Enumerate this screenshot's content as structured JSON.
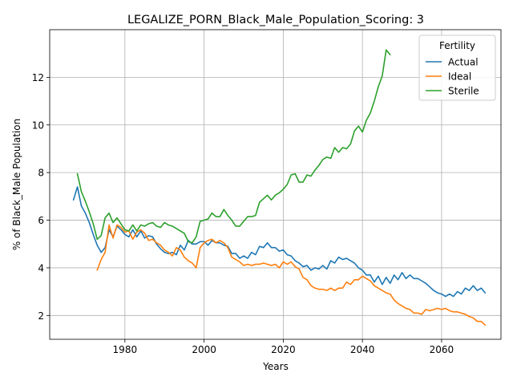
{
  "chart_data": {
    "type": "line",
    "title": "LEGALIZE_PORN_Black_Male_Population_Scoring: 3",
    "xlabel": "Years",
    "ylabel": "% of Black_Male Population",
    "xlim": [
      1961,
      2075
    ],
    "ylim": [
      1.0,
      14.0
    ],
    "xticks": [
      1980,
      2000,
      2020,
      2040,
      2060
    ],
    "yticks": [
      2,
      4,
      6,
      8,
      10,
      12
    ],
    "grid": true,
    "legend": {
      "title": "Fertility",
      "placement": "top-right"
    },
    "series": [
      {
        "name": "Actual",
        "color": "#1f77b4",
        "points": [
          [
            1967,
            6.85
          ],
          [
            1968,
            7.4
          ],
          [
            1969,
            6.6
          ],
          [
            1970,
            6.3
          ],
          [
            1971,
            5.9
          ],
          [
            1972,
            5.4
          ],
          [
            1973,
            4.95
          ],
          [
            1974,
            4.65
          ],
          [
            1975,
            4.85
          ],
          [
            1976,
            5.6
          ],
          [
            1977,
            5.3
          ],
          [
            1978,
            5.75
          ],
          [
            1979,
            5.6
          ],
          [
            1980,
            5.4
          ],
          [
            1981,
            5.3
          ],
          [
            1982,
            5.6
          ],
          [
            1983,
            5.3
          ],
          [
            1984,
            5.55
          ],
          [
            1985,
            5.25
          ],
          [
            1986,
            5.35
          ],
          [
            1987,
            5.3
          ],
          [
            1988,
            5.0
          ],
          [
            1989,
            4.8
          ],
          [
            1990,
            4.65
          ],
          [
            1991,
            4.6
          ],
          [
            1992,
            4.65
          ],
          [
            1993,
            4.55
          ],
          [
            1994,
            4.95
          ],
          [
            1995,
            4.75
          ],
          [
            1996,
            5.15
          ],
          [
            1997,
            5.0
          ],
          [
            1998,
            5.0
          ],
          [
            1999,
            5.1
          ],
          [
            2000,
            5.1
          ],
          [
            2001,
            4.95
          ],
          [
            2002,
            5.15
          ],
          [
            2003,
            5.05
          ],
          [
            2004,
            5.05
          ],
          [
            2005,
            4.95
          ],
          [
            2006,
            4.9
          ],
          [
            2007,
            4.6
          ],
          [
            2008,
            4.6
          ],
          [
            2009,
            4.4
          ],
          [
            2010,
            4.5
          ],
          [
            2011,
            4.4
          ],
          [
            2012,
            4.65
          ],
          [
            2013,
            4.55
          ],
          [
            2014,
            4.9
          ],
          [
            2015,
            4.85
          ],
          [
            2016,
            5.05
          ],
          [
            2017,
            4.85
          ],
          [
            2018,
            4.85
          ],
          [
            2019,
            4.7
          ],
          [
            2020,
            4.75
          ],
          [
            2021,
            4.55
          ],
          [
            2022,
            4.5
          ],
          [
            2023,
            4.3
          ],
          [
            2024,
            4.2
          ],
          [
            2025,
            4.05
          ],
          [
            2026,
            4.1
          ],
          [
            2027,
            3.9
          ],
          [
            2028,
            4.0
          ],
          [
            2029,
            3.95
          ],
          [
            2030,
            4.1
          ],
          [
            2031,
            3.95
          ],
          [
            2032,
            4.3
          ],
          [
            2033,
            4.2
          ],
          [
            2034,
            4.45
          ],
          [
            2035,
            4.35
          ],
          [
            2036,
            4.4
          ],
          [
            2037,
            4.3
          ],
          [
            2038,
            4.2
          ],
          [
            2039,
            4.0
          ],
          [
            2040,
            3.9
          ],
          [
            2041,
            3.7
          ],
          [
            2042,
            3.7
          ],
          [
            2043,
            3.4
          ],
          [
            2044,
            3.65
          ],
          [
            2045,
            3.3
          ],
          [
            2046,
            3.6
          ],
          [
            2047,
            3.35
          ],
          [
            2048,
            3.7
          ],
          [
            2049,
            3.5
          ],
          [
            2050,
            3.8
          ],
          [
            2051,
            3.55
          ],
          [
            2052,
            3.7
          ],
          [
            2053,
            3.55
          ],
          [
            2054,
            3.55
          ],
          [
            2055,
            3.45
          ],
          [
            2056,
            3.35
          ],
          [
            2057,
            3.2
          ],
          [
            2058,
            3.05
          ],
          [
            2059,
            2.95
          ],
          [
            2060,
            2.9
          ],
          [
            2061,
            2.8
          ],
          [
            2062,
            2.9
          ],
          [
            2063,
            2.8
          ],
          [
            2064,
            3.0
          ],
          [
            2065,
            2.9
          ],
          [
            2066,
            3.15
          ],
          [
            2067,
            3.05
          ],
          [
            2068,
            3.25
          ],
          [
            2069,
            3.05
          ],
          [
            2070,
            3.15
          ],
          [
            2071,
            2.95
          ]
        ]
      },
      {
        "name": "Ideal",
        "color": "#ff7f0e",
        "points": [
          [
            1973,
            3.9
          ],
          [
            1974,
            4.35
          ],
          [
            1975,
            4.65
          ],
          [
            1976,
            5.8
          ],
          [
            1977,
            5.25
          ],
          [
            1978,
            5.8
          ],
          [
            1979,
            5.7
          ],
          [
            1980,
            5.5
          ],
          [
            1981,
            5.55
          ],
          [
            1982,
            5.2
          ],
          [
            1983,
            5.5
          ],
          [
            1984,
            5.6
          ],
          [
            1985,
            5.45
          ],
          [
            1986,
            5.15
          ],
          [
            1987,
            5.2
          ],
          [
            1988,
            5.05
          ],
          [
            1989,
            4.95
          ],
          [
            1990,
            4.75
          ],
          [
            1991,
            4.65
          ],
          [
            1992,
            4.5
          ],
          [
            1993,
            4.85
          ],
          [
            1994,
            4.75
          ],
          [
            1995,
            4.45
          ],
          [
            1996,
            4.3
          ],
          [
            1997,
            4.2
          ],
          [
            1998,
            4.0
          ],
          [
            1999,
            4.85
          ],
          [
            2000,
            5.05
          ],
          [
            2001,
            5.15
          ],
          [
            2002,
            5.2
          ],
          [
            2003,
            5.05
          ],
          [
            2004,
            5.15
          ],
          [
            2005,
            5.05
          ],
          [
            2006,
            4.85
          ],
          [
            2007,
            4.45
          ],
          [
            2008,
            4.35
          ],
          [
            2009,
            4.25
          ],
          [
            2010,
            4.1
          ],
          [
            2011,
            4.15
          ],
          [
            2012,
            4.1
          ],
          [
            2013,
            4.15
          ],
          [
            2014,
            4.15
          ],
          [
            2015,
            4.2
          ],
          [
            2016,
            4.15
          ],
          [
            2017,
            4.1
          ],
          [
            2018,
            4.15
          ],
          [
            2019,
            4.0
          ],
          [
            2020,
            4.25
          ],
          [
            2021,
            4.15
          ],
          [
            2022,
            4.25
          ],
          [
            2023,
            4.05
          ],
          [
            2024,
            3.95
          ],
          [
            2025,
            3.6
          ],
          [
            2026,
            3.5
          ],
          [
            2027,
            3.25
          ],
          [
            2028,
            3.15
          ],
          [
            2029,
            3.1
          ],
          [
            2030,
            3.1
          ],
          [
            2031,
            3.05
          ],
          [
            2032,
            3.15
          ],
          [
            2033,
            3.05
          ],
          [
            2034,
            3.15
          ],
          [
            2035,
            3.15
          ],
          [
            2036,
            3.4
          ],
          [
            2037,
            3.3
          ],
          [
            2038,
            3.5
          ],
          [
            2039,
            3.5
          ],
          [
            2040,
            3.65
          ],
          [
            2041,
            3.55
          ],
          [
            2042,
            3.45
          ],
          [
            2043,
            3.25
          ],
          [
            2044,
            3.15
          ],
          [
            2045,
            3.05
          ],
          [
            2046,
            2.95
          ],
          [
            2047,
            2.9
          ],
          [
            2048,
            2.65
          ],
          [
            2049,
            2.5
          ],
          [
            2050,
            2.4
          ],
          [
            2051,
            2.3
          ],
          [
            2052,
            2.25
          ],
          [
            2053,
            2.1
          ],
          [
            2054,
            2.1
          ],
          [
            2055,
            2.05
          ],
          [
            2056,
            2.25
          ],
          [
            2057,
            2.2
          ],
          [
            2058,
            2.25
          ],
          [
            2059,
            2.3
          ],
          [
            2060,
            2.25
          ],
          [
            2061,
            2.3
          ],
          [
            2062,
            2.2
          ],
          [
            2063,
            2.15
          ],
          [
            2064,
            2.15
          ],
          [
            2065,
            2.1
          ],
          [
            2066,
            2.05
          ],
          [
            2067,
            1.95
          ],
          [
            2068,
            1.9
          ],
          [
            2069,
            1.75
          ],
          [
            2070,
            1.75
          ],
          [
            2071,
            1.6
          ]
        ]
      },
      {
        "name": "Sterile",
        "color": "#2ca02c",
        "points": [
          [
            1968,
            7.95
          ],
          [
            1969,
            7.2
          ],
          [
            1970,
            6.8
          ],
          [
            1971,
            6.35
          ],
          [
            1972,
            5.85
          ],
          [
            1973,
            5.2
          ],
          [
            1974,
            5.35
          ],
          [
            1975,
            6.1
          ],
          [
            1976,
            6.3
          ],
          [
            1977,
            5.9
          ],
          [
            1978,
            6.1
          ],
          [
            1979,
            5.85
          ],
          [
            1980,
            5.6
          ],
          [
            1981,
            5.55
          ],
          [
            1982,
            5.8
          ],
          [
            1983,
            5.55
          ],
          [
            1984,
            5.8
          ],
          [
            1985,
            5.75
          ],
          [
            1986,
            5.85
          ],
          [
            1987,
            5.9
          ],
          [
            1988,
            5.75
          ],
          [
            1989,
            5.7
          ],
          [
            1990,
            5.9
          ],
          [
            1991,
            5.8
          ],
          [
            1992,
            5.75
          ],
          [
            1993,
            5.65
          ],
          [
            1994,
            5.55
          ],
          [
            1995,
            5.45
          ],
          [
            1996,
            5.1
          ],
          [
            1997,
            5.05
          ],
          [
            1998,
            5.3
          ],
          [
            1999,
            5.95
          ],
          [
            2000,
            6.0
          ],
          [
            2001,
            6.05
          ],
          [
            2002,
            6.3
          ],
          [
            2003,
            6.15
          ],
          [
            2004,
            6.15
          ],
          [
            2005,
            6.45
          ],
          [
            2006,
            6.2
          ],
          [
            2007,
            6.0
          ],
          [
            2008,
            5.75
          ],
          [
            2009,
            5.75
          ],
          [
            2010,
            5.95
          ],
          [
            2011,
            6.15
          ],
          [
            2012,
            6.15
          ],
          [
            2013,
            6.2
          ],
          [
            2014,
            6.75
          ],
          [
            2015,
            6.9
          ],
          [
            2016,
            7.05
          ],
          [
            2017,
            6.85
          ],
          [
            2018,
            7.05
          ],
          [
            2019,
            7.15
          ],
          [
            2020,
            7.3
          ],
          [
            2021,
            7.5
          ],
          [
            2022,
            7.9
          ],
          [
            2023,
            7.95
          ],
          [
            2024,
            7.6
          ],
          [
            2025,
            7.6
          ],
          [
            2026,
            7.9
          ],
          [
            2027,
            7.85
          ],
          [
            2028,
            8.1
          ],
          [
            2029,
            8.3
          ],
          [
            2030,
            8.55
          ],
          [
            2031,
            8.65
          ],
          [
            2032,
            8.6
          ],
          [
            2033,
            9.05
          ],
          [
            2034,
            8.85
          ],
          [
            2035,
            9.05
          ],
          [
            2036,
            9.0
          ],
          [
            2037,
            9.2
          ],
          [
            2038,
            9.75
          ],
          [
            2039,
            9.95
          ],
          [
            2040,
            9.7
          ],
          [
            2041,
            10.2
          ],
          [
            2042,
            10.5
          ],
          [
            2043,
            11.0
          ],
          [
            2044,
            11.6
          ],
          [
            2045,
            12.05
          ],
          [
            2046,
            13.15
          ],
          [
            2047,
            12.95
          ]
        ]
      }
    ]
  }
}
